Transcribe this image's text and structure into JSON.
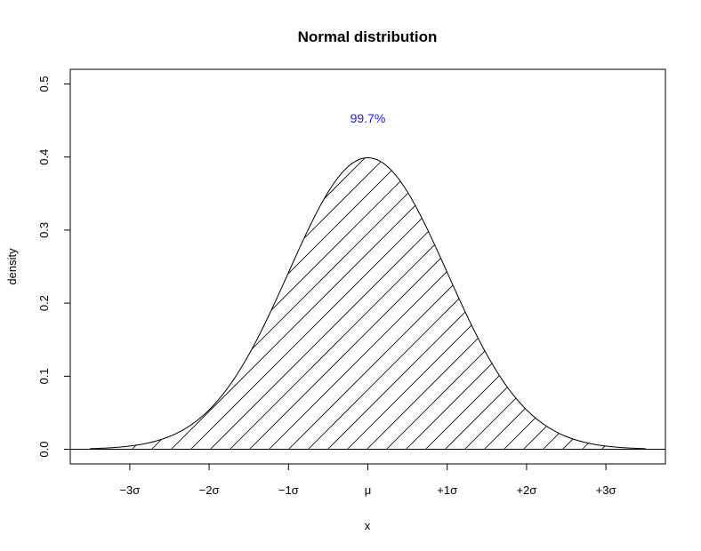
{
  "chart_data": {
    "type": "area",
    "title": "Normal distribution",
    "xlabel": "x",
    "ylabel": "density",
    "xlim": [
      -3.75,
      3.75
    ],
    "ylim": [
      -0.02,
      0.52
    ],
    "curve_range": [
      -3.5,
      3.5
    ],
    "shaded_range": [
      -3.0,
      3.0
    ],
    "shading": "diagonal-hatch",
    "baseline_y": 0,
    "x_ticks": [
      {
        "value": -3,
        "label": "−3σ"
      },
      {
        "value": -2,
        "label": "−2σ"
      },
      {
        "value": -1,
        "label": "−1σ"
      },
      {
        "value": 0,
        "label": "μ"
      },
      {
        "value": 1,
        "label": "+1σ"
      },
      {
        "value": 2,
        "label": "+2σ"
      },
      {
        "value": 3,
        "label": "+3σ"
      }
    ],
    "y_ticks": [
      {
        "value": 0.0,
        "label": "0.0"
      },
      {
        "value": 0.1,
        "label": "0.1"
      },
      {
        "value": 0.2,
        "label": "0.2"
      },
      {
        "value": 0.3,
        "label": "0.3"
      },
      {
        "value": 0.4,
        "label": "0.4"
      },
      {
        "value": 0.5,
        "label": "0.5"
      }
    ],
    "annotation": {
      "text": "99.7%",
      "x": 0,
      "y": 0.447,
      "color": "#2020e0"
    },
    "grid": false,
    "legend": "none"
  }
}
